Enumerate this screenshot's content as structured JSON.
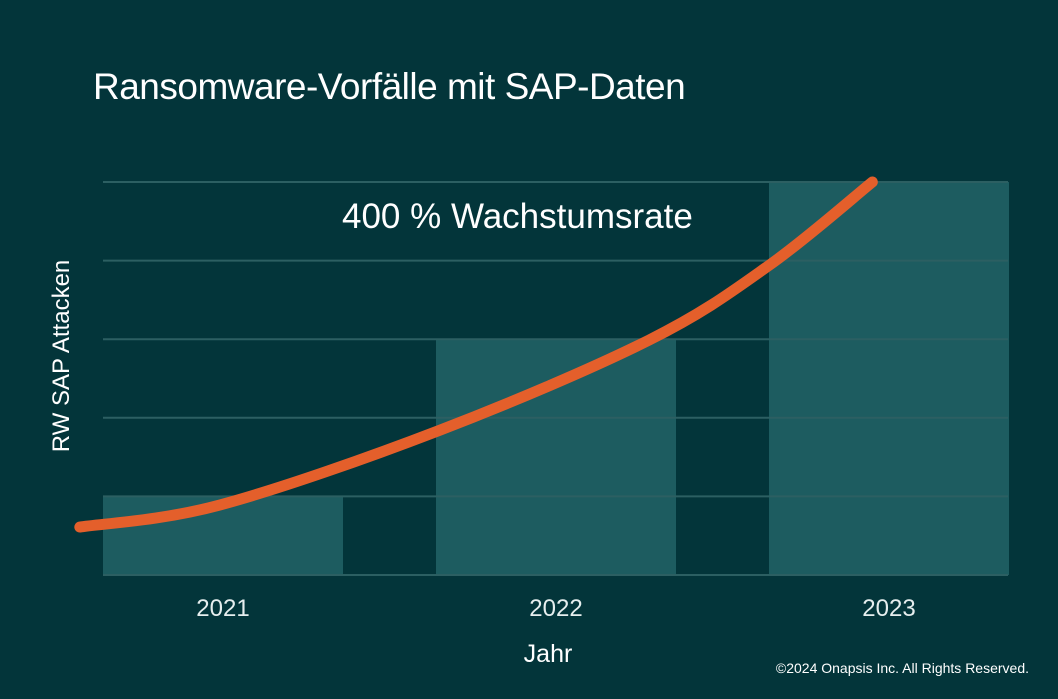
{
  "chart_data": {
    "type": "bar",
    "title": "Ransomware-Vorfälle mit SAP-Daten",
    "xlabel": "Jahr",
    "ylabel": "RW SAP Attacken",
    "categories": [
      "2021",
      "2022",
      "2023"
    ],
    "values": [
      1,
      3,
      5
    ],
    "ylim": [
      0,
      5
    ],
    "grid": true,
    "annotation": "400 % Wachstumsrate",
    "trend_line": {
      "x": [
        -0.43,
        -0.01,
        0.65,
        1.28,
        1.64,
        1.95
      ],
      "y": [
        0.61,
        0.89,
        1.84,
        2.99,
        3.94,
        5.0
      ]
    },
    "colors": {
      "background": "#03353a",
      "bar": "#1d5c60",
      "grid": "#2c5f62",
      "trend": "#e45f2b"
    }
  },
  "footer": {
    "copyright": "©2024 Onapsis Inc. All Rights Reserved."
  }
}
